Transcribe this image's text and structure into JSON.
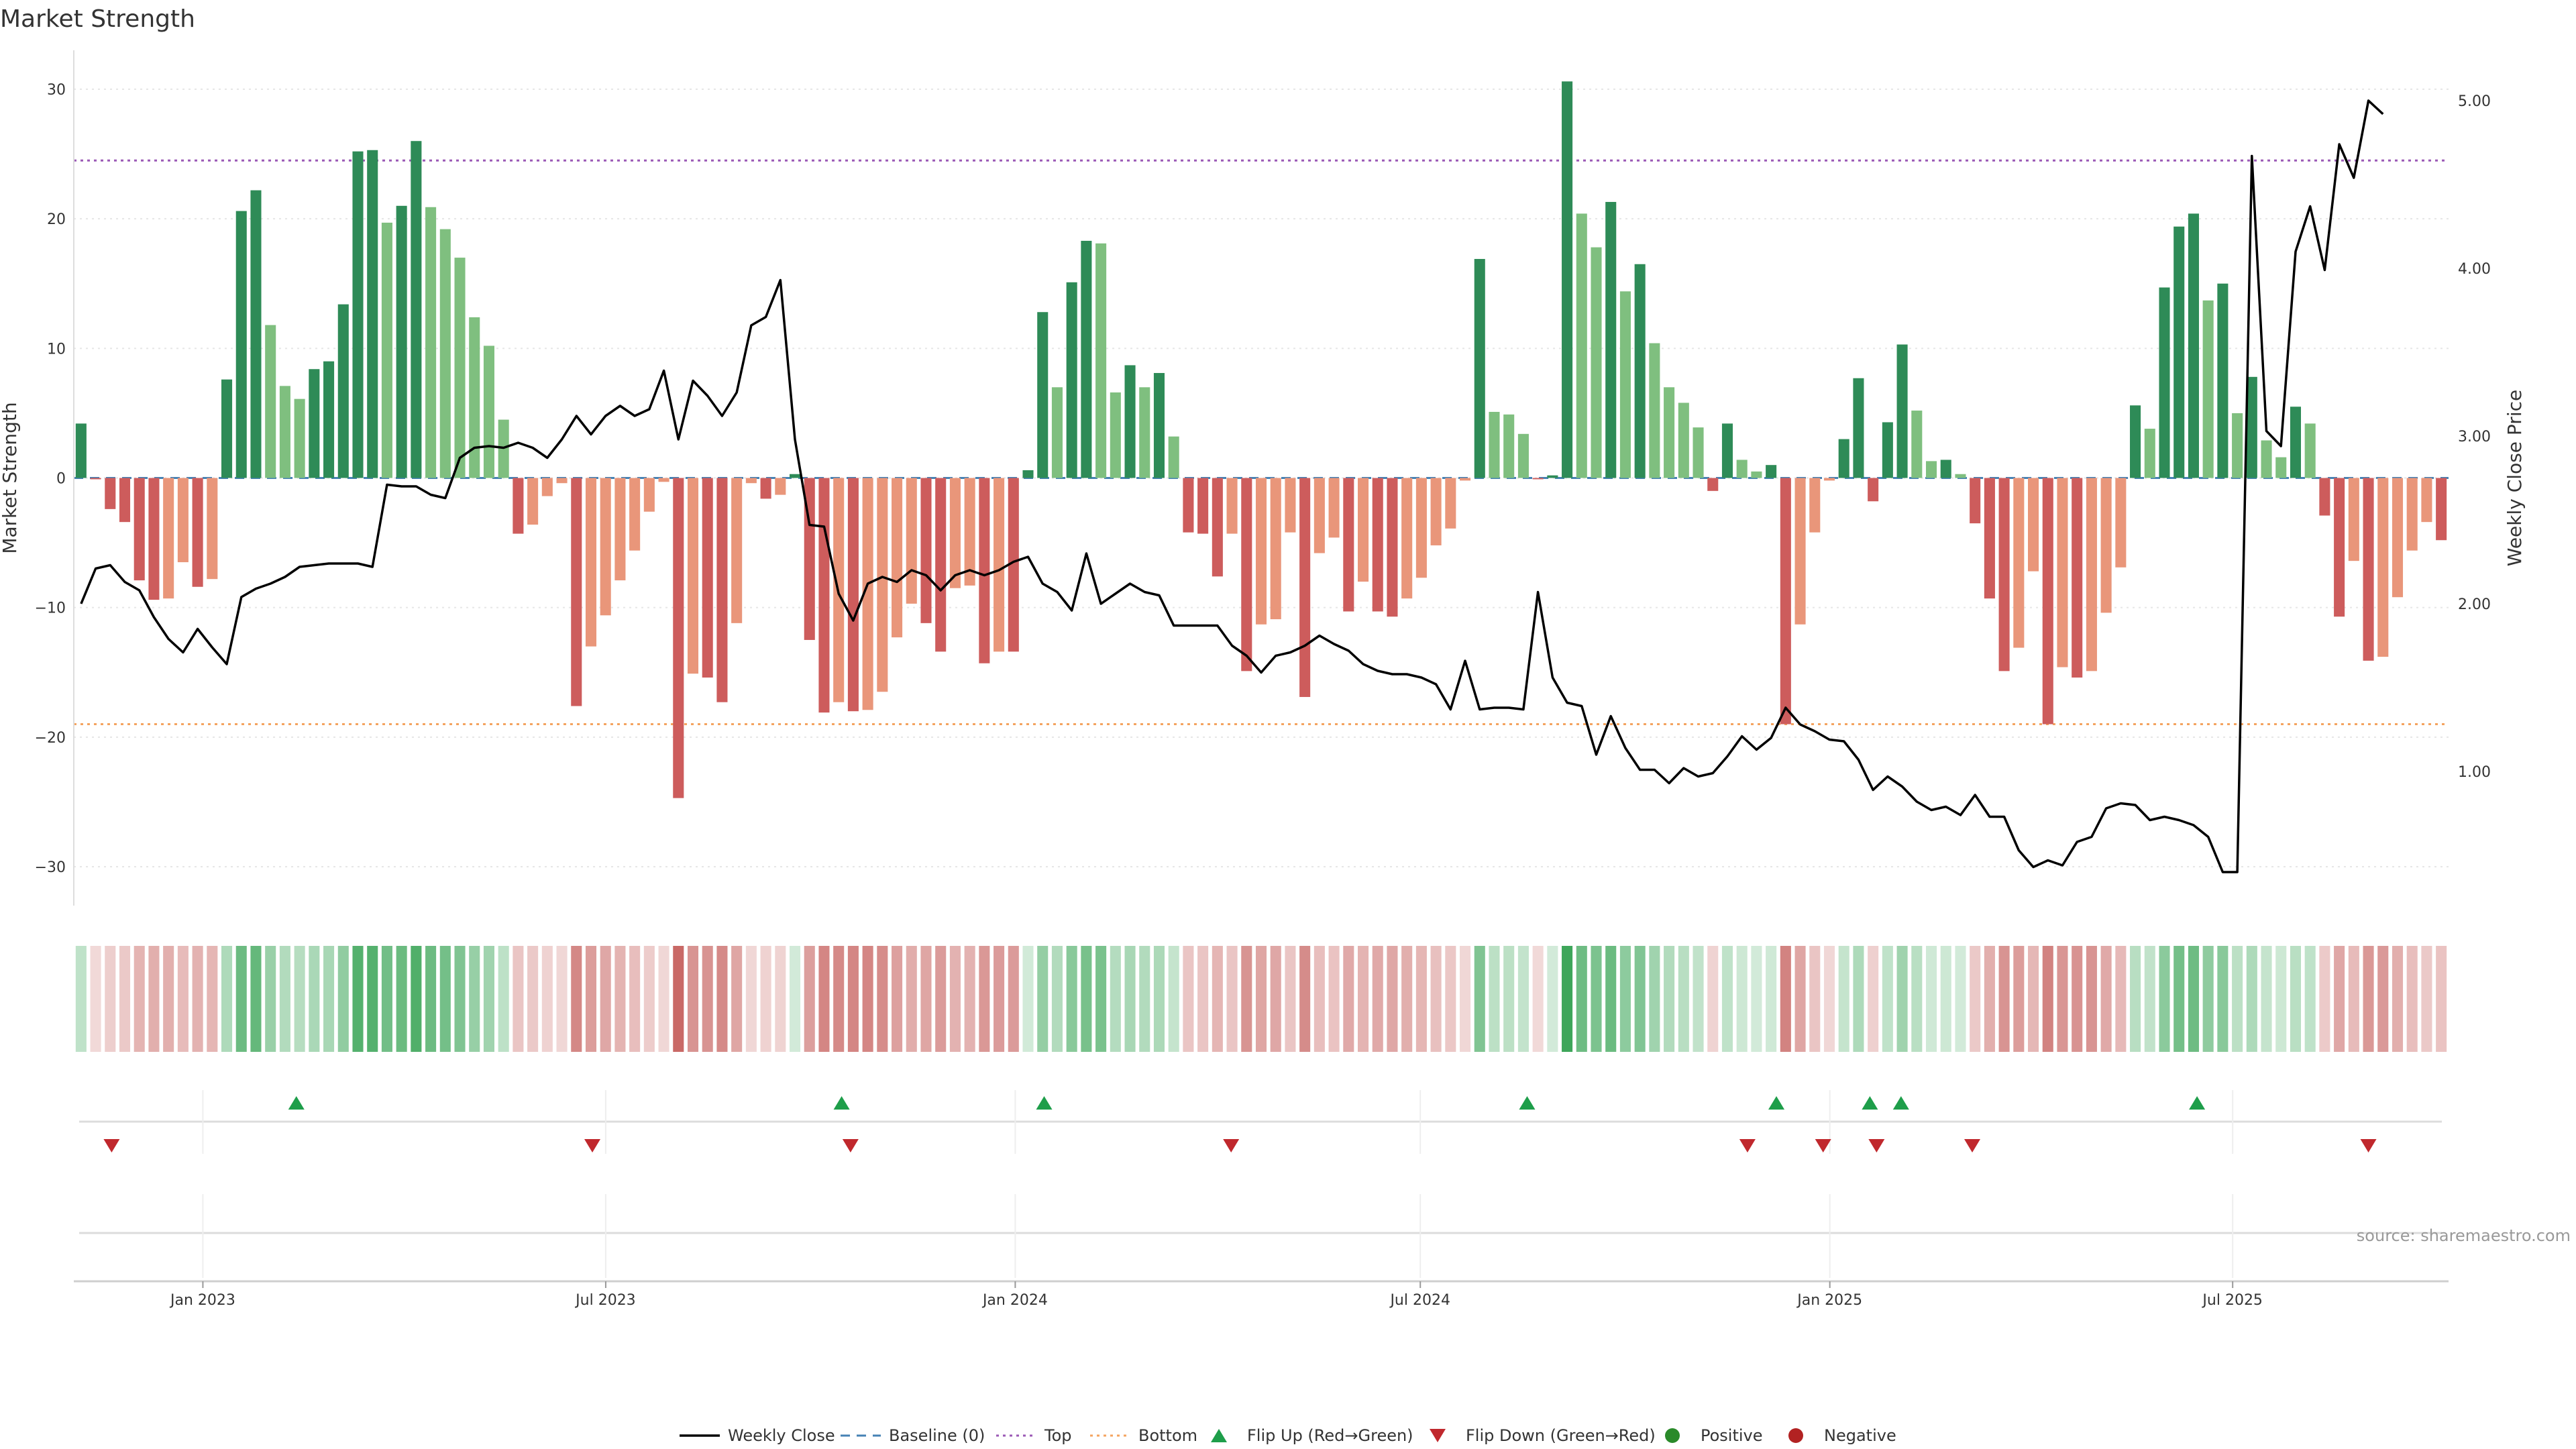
{
  "chart_data": {
    "type": "bar",
    "title": "Market Strength",
    "ylabel": "Market Strength",
    "y2label": "Weekly Close Price",
    "ylim": [
      -33,
      33
    ],
    "y2lim": [
      0.2,
      5.3
    ],
    "yticks": [
      30,
      20,
      10,
      0,
      -10,
      -20,
      -30
    ],
    "yticklabels": [
      "30",
      "20",
      "10",
      "0",
      "−10",
      "−20",
      "−30"
    ],
    "y2ticks": [
      5.0,
      4.0,
      3.0,
      2.0,
      1.0
    ],
    "y2ticklabels": [
      "5.00",
      "4.00",
      "3.00",
      "2.00",
      "1.00"
    ],
    "x_start": "2022-11-04",
    "x_end": "2025-10-06",
    "xticks": [
      "2023-01-01",
      "2023-07-01",
      "2024-01-01",
      "2024-07-01",
      "2025-01-01",
      "2025-07-01"
    ],
    "xticklabels": [
      "Jan 2023",
      "Jul 2023",
      "Jan 2024",
      "Jul 2024",
      "Jan 2025",
      "Jul 2025"
    ],
    "top_line": 24.5,
    "bottom_line": -19,
    "strength": [
      4.2,
      -0.1,
      -2.4,
      -3.4,
      -7.9,
      -9.4,
      -9.3,
      -6.5,
      -8.4,
      -7.8,
      7.6,
      20.6,
      22.2,
      11.8,
      7.1,
      6.1,
      8.4,
      9.0,
      13.4,
      25.2,
      25.3,
      19.7,
      21.0,
      26.0,
      20.9,
      19.2,
      17.0,
      12.4,
      10.2,
      4.5,
      -4.3,
      -3.6,
      -1.4,
      -0.4,
      -17.6,
      -13.0,
      -10.6,
      -7.9,
      -5.6,
      -2.6,
      -0.3,
      -24.7,
      -15.1,
      -15.4,
      -17.3,
      -11.2,
      -0.4,
      -1.6,
      -1.3,
      0.3,
      -12.5,
      -18.1,
      -17.3,
      -18.0,
      -17.9,
      -16.5,
      -12.3,
      -9.7,
      -11.2,
      -13.4,
      -8.5,
      -8.3,
      -14.3,
      -13.4,
      -13.4,
      0.6,
      12.8,
      7.0,
      15.1,
      18.3,
      18.1,
      6.6,
      8.7,
      7.0,
      8.1,
      3.2,
      -4.2,
      -4.3,
      -7.6,
      -4.3,
      -14.9,
      -11.3,
      -10.9,
      -4.2,
      -16.9,
      -5.8,
      -4.6,
      -10.3,
      -8.0,
      -10.3,
      -10.7,
      -9.3,
      -7.7,
      -5.2,
      -3.9,
      -0.2,
      16.9,
      5.1,
      4.9,
      3.4,
      -0.1,
      0.2,
      30.6,
      20.4,
      17.8,
      21.3,
      14.4,
      16.5,
      10.4,
      7.0,
      5.8,
      3.9,
      -1.0,
      4.2,
      1.4,
      0.5,
      1.0,
      -19.0,
      -11.3,
      -4.2,
      -0.2,
      3.0,
      7.7,
      -1.8,
      4.3,
      10.3,
      5.2,
      1.3,
      1.4,
      0.3,
      -3.5,
      -9.3,
      -14.9,
      -13.1,
      -7.2,
      -19.0,
      -14.6,
      -15.4,
      -14.9,
      -10.4,
      -6.9,
      5.6,
      3.8,
      14.7,
      19.4,
      20.4,
      13.7,
      15.0,
      5.0,
      7.8,
      2.9,
      1.6,
      5.5,
      4.2,
      -2.9,
      -10.7,
      -6.4,
      -14.1,
      -13.8,
      -9.2,
      -5.6,
      -3.4,
      -4.8
    ],
    "weekly_close": [
      2.0,
      2.21,
      2.23,
      2.13,
      2.08,
      1.92,
      1.79,
      1.71,
      1.85,
      1.74,
      1.64,
      2.04,
      2.09,
      2.12,
      2.16,
      2.22,
      2.23,
      2.24,
      2.24,
      2.24,
      2.22,
      2.71,
      2.7,
      2.7,
      2.65,
      2.63,
      2.87,
      2.93,
      2.94,
      2.93,
      2.96,
      2.93,
      2.87,
      2.98,
      3.12,
      3.01,
      3.12,
      3.18,
      3.12,
      3.16,
      3.39,
      2.98,
      3.33,
      3.24,
      3.12,
      3.26,
      3.66,
      3.71,
      3.93,
      2.98,
      2.47,
      2.46,
      2.06,
      1.9,
      2.12,
      2.16,
      2.13,
      2.2,
      2.17,
      2.08,
      2.17,
      2.2,
      2.17,
      2.2,
      2.25,
      2.28,
      2.12,
      2.07,
      1.96,
      2.3,
      2.0,
      2.06,
      2.12,
      2.07,
      2.05,
      1.87,
      1.87,
      1.87,
      1.87,
      1.75,
      1.69,
      1.59,
      1.69,
      1.71,
      1.75,
      1.81,
      1.76,
      1.72,
      1.64,
      1.6,
      1.58,
      1.58,
      1.56,
      1.52,
      1.37,
      1.66,
      1.37,
      1.38,
      1.38,
      1.37,
      2.07,
      1.56,
      1.41,
      1.39,
      1.1,
      1.33,
      1.14,
      1.01,
      1.01,
      0.93,
      1.02,
      0.97,
      0.99,
      1.09,
      1.21,
      1.13,
      1.2,
      1.38,
      1.28,
      1.24,
      1.19,
      1.18,
      1.07,
      0.89,
      0.97,
      0.91,
      0.82,
      0.77,
      0.79,
      0.74,
      0.86,
      0.73,
      0.73,
      0.53,
      0.43,
      0.47,
      0.44,
      0.58,
      0.61,
      0.78,
      0.81,
      0.8,
      0.71,
      0.73,
      0.71,
      0.68,
      0.61,
      0.4,
      0.4,
      4.67,
      3.03,
      2.94,
      4.1,
      4.37,
      3.99,
      4.74,
      4.54,
      5.0,
      4.92
    ],
    "flip_up": [
      "2023-02-12",
      "2023-10-15",
      "2024-01-14",
      "2024-08-18",
      "2024-12-08",
      "2025-01-19",
      "2025-02-02",
      "2025-06-15"
    ],
    "flip_down": [
      "2022-11-21",
      "2023-06-25",
      "2023-10-19",
      "2024-04-07",
      "2024-11-25",
      "2024-12-29",
      "2025-01-22",
      "2025-03-06",
      "2025-08-31"
    ],
    "legend": [
      "Weekly Close",
      "Baseline (0)",
      "Top",
      "Bottom",
      "Flip Up (Red→Green)",
      "Flip Down (Green→Red)",
      "Positive",
      "Negative"
    ],
    "legend_placement": "bottom-center",
    "source": "source: sharemaestro.com",
    "colors": {
      "strong_green": "#2e8b57",
      "light_green": "#7fbf7f",
      "strong_red": "#cd5c5c",
      "light_red": "#e9967a",
      "baseline": "#4682b4",
      "top": "#9b59b6",
      "bottom": "#f4a460",
      "price_line": "#000000",
      "flip_up": "#1e9e4a",
      "flip_down": "#c0282d",
      "positive": "#2a8a2a",
      "negative": "#b22222",
      "grid": "#e6e6e6"
    }
  }
}
